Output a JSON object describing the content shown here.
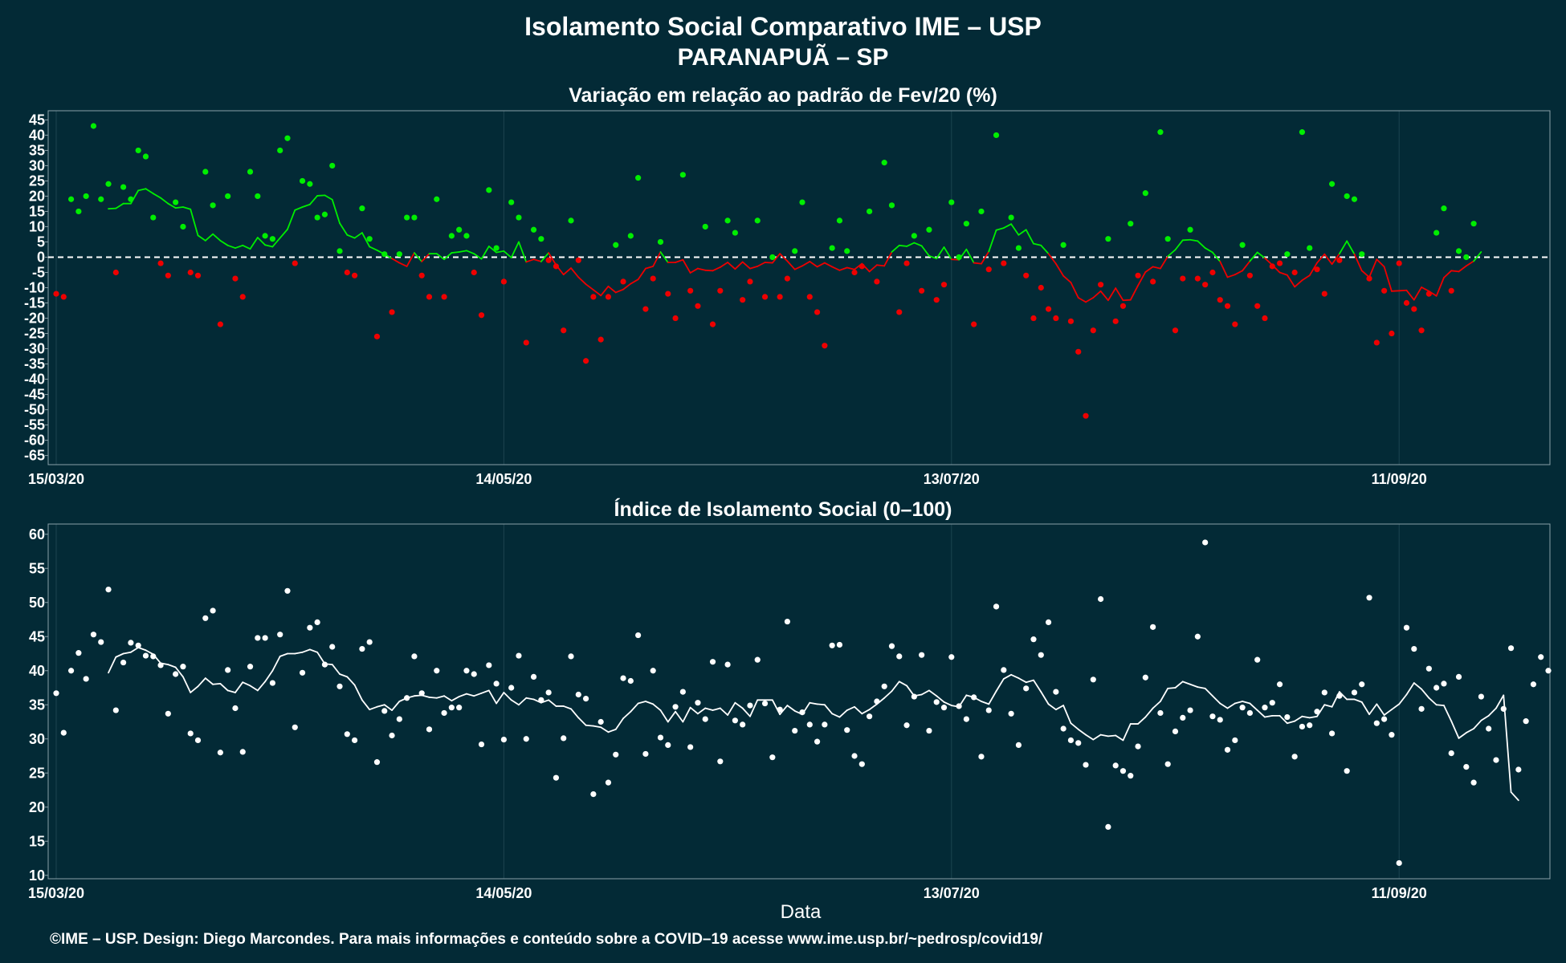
{
  "colors": {
    "background": "#032a36",
    "panel_border": "#8aa0a8",
    "grid": "#1d4450",
    "above_zero": "#00ee00",
    "below_zero": "#ee0000",
    "index": "#ffffff"
  },
  "title": "Isolamento Social Comparativo IME – USP",
  "subtitle": "PARANAPUÃ – SP",
  "footer": "©IME – USP. Design: Diego Marcondes. Para mais informações e conteúdo sobre a COVID–19 acesse www.ime.usp.br/~pedrosp/covid19/",
  "xlabel": "Data",
  "chart_data": [
    {
      "type": "scatter",
      "title": "Variação em relação ao padrão de Fev/20 (%)",
      "x_start": "15/03/20",
      "x_tick_labels": [
        "15/03/20",
        "14/05/20",
        "13/07/20",
        "11/09/20"
      ],
      "x_tick_days": [
        0,
        60,
        120,
        180
      ],
      "ylim": [
        -68,
        48
      ],
      "y_ticks": [
        45,
        40,
        35,
        30,
        25,
        20,
        15,
        10,
        5,
        0,
        -5,
        -10,
        -15,
        -20,
        -25,
        -30,
        -35,
        -40,
        -45,
        -50,
        -55,
        -60,
        -65
      ],
      "reference_line": 0,
      "series": [
        {
          "kind": "daily_points",
          "values": [
            -12,
            -13,
            19,
            15,
            20,
            43,
            19,
            24,
            -5,
            23,
            19,
            35,
            33,
            13,
            -2,
            -6,
            18,
            10,
            -5,
            -6,
            28,
            17,
            -22,
            20,
            -7,
            -13,
            28,
            20,
            7,
            6,
            35,
            39,
            -2,
            25,
            24,
            13,
            14,
            30,
            2,
            -5,
            -6,
            16,
            6,
            -26,
            1,
            -18,
            1,
            13,
            13,
            -6,
            -13,
            19,
            -13,
            7,
            9,
            7,
            -5,
            -19,
            22,
            3,
            -8,
            18,
            13,
            -28,
            9,
            6,
            -1,
            -3,
            -24,
            12,
            -1,
            -34,
            -13,
            -27,
            -13,
            4,
            -8,
            7,
            26,
            -17,
            -7,
            5,
            -12,
            -20,
            27,
            -11,
            -16,
            10,
            -22,
            -11,
            12,
            8,
            -14,
            -8,
            12,
            -13,
            0,
            -13,
            -7,
            2,
            18,
            -13,
            -18,
            -29,
            3,
            12,
            2,
            -5,
            -3,
            15,
            -8,
            31,
            17,
            -18,
            -2,
            7,
            -11,
            9,
            -14,
            -9,
            18,
            0,
            11,
            -22,
            15,
            -4,
            40,
            -2,
            13,
            3,
            -6,
            -20,
            -10,
            -17,
            -20,
            4,
            -21,
            -31,
            -52,
            -24,
            -9,
            6,
            -21,
            -16,
            11,
            -6,
            21,
            -8,
            41,
            6,
            -24,
            -7,
            9,
            -7,
            -9,
            -5,
            -14,
            -16,
            -22,
            4,
            -6,
            -16,
            -20,
            -3,
            -2,
            1,
            -5,
            41,
            3,
            -4,
            -12,
            24,
            -1,
            20,
            19,
            1,
            -7,
            -28,
            -11,
            -25,
            -2,
            -15,
            -17,
            -24,
            -12,
            8,
            16,
            -11,
            2,
            0,
            11
          ]
        },
        {
          "kind": "moving_average",
          "values": [
            null,
            null,
            null,
            null,
            null,
            null,
            null,
            15.86,
            16.0,
            17.57,
            17.57,
            21.86,
            22.43,
            20.86,
            19.43,
            17.57,
            16.14,
            16.43,
            15.71,
            7.14,
            5.43,
            7.57,
            5.43,
            3.86,
            3.0,
            3.86,
            2.71,
            6.43,
            4.0,
            3.43,
            6.29,
            9.14,
            15.43,
            16.43,
            17.29,
            20.14,
            20.29,
            18.86,
            11.14,
            7.29,
            6.29,
            8.0,
            3.43,
            2.29,
            1.0,
            -0.43,
            -1.86,
            -3.0,
            1.43,
            -1.43,
            1.14,
            1.14,
            -0.71,
            1.43,
            1.71,
            2.14,
            1.14,
            -0.57,
            3.57,
            1.57,
            2.0,
            -0.14,
            5.0,
            -1.57,
            -0.71,
            -1.43,
            1.43,
            -2.57,
            -5.71,
            -3.57,
            -6.57,
            -8.86,
            -10.71,
            -12.57,
            -9.57,
            -11.57,
            -10.57,
            -8.71,
            -7.29,
            -3.71,
            -3.0,
            1.71,
            -1.71,
            -1.71,
            -0.86,
            -5.14,
            -3.71,
            -4.29,
            -4.43,
            -3.29,
            -1.71,
            -3.86,
            -1.57,
            -3.71,
            -3.0,
            -1.71,
            -1.86,
            1.14,
            -1.29,
            -4.0,
            -2.86,
            -1.43,
            -3.14,
            -1.86,
            -3.14,
            -4.29,
            -3.43,
            -4.0,
            -2.14,
            -4.71,
            -2.57,
            -2.86,
            1.71,
            3.86,
            3.57,
            4.71,
            3.71,
            0.43,
            -0.43,
            3.29,
            -0.71,
            -0.86,
            2.57,
            -1.86,
            -2.14,
            1.86,
            8.86,
            9.57,
            10.86,
            7.29,
            9.0,
            4.43,
            3.86,
            1.14,
            -2.14,
            -6.14,
            -8.29,
            -13.29,
            -14.71,
            -13.29,
            -11.14,
            -14.14,
            -10.14,
            -14.14,
            -14.0,
            -9.29,
            -4.86,
            -3.14,
            -3.71,
            0.29,
            2.43,
            5.57,
            5.71,
            5.29,
            3.0,
            1.57,
            -1.43,
            -6.57,
            -5.71,
            -4.43,
            -1.29,
            1.57,
            -0.29,
            -2.57,
            -5.0,
            -5.86,
            -9.71,
            -7.57,
            -6.0,
            -1.86,
            1.0,
            -2.29,
            1.14,
            5.29,
            1.0,
            -4.43,
            -6.57,
            -0.71,
            -3.14,
            -11.14,
            -11.0,
            -10.86,
            -14.0,
            -9.86,
            -11.14,
            -12.71,
            -6.71,
            -4.43,
            -4.71,
            -2.86,
            -1.29,
            1.71
          ]
        }
      ]
    },
    {
      "type": "scatter",
      "title": "Índice de Isolamento Social (0–100)",
      "x_start": "15/03/20",
      "x_tick_labels": [
        "15/03/20",
        "14/05/20",
        "13/07/20",
        "11/09/20"
      ],
      "x_tick_days": [
        0,
        60,
        120,
        180
      ],
      "ylim": [
        9.5,
        61.5
      ],
      "y_ticks": [
        60,
        55,
        50,
        45,
        40,
        35,
        30,
        25,
        20,
        15,
        10
      ],
      "series": [
        {
          "kind": "daily_points",
          "values": [
            36.7,
            30.9,
            40,
            42.6,
            38.8,
            45.3,
            44.2,
            51.9,
            34.2,
            41.2,
            44.1,
            43.7,
            42.2,
            42.1,
            40.8,
            33.7,
            39.5,
            40.6,
            30.8,
            29.8,
            47.7,
            48.8,
            28,
            40.1,
            34.5,
            28.1,
            40.6,
            44.8,
            44.8,
            38.2,
            45.3,
            51.7,
            31.7,
            39.7,
            46.3,
            47.1,
            40.9,
            43.5,
            37.7,
            30.7,
            29.8,
            43.2,
            44.2,
            26.6,
            34.1,
            30.5,
            32.9,
            36,
            42.1,
            36.7,
            31.4,
            40,
            33.8,
            34.6,
            34.6,
            40,
            39.5,
            29.2,
            40.8,
            38.1,
            29.9,
            37.5,
            42.2,
            30,
            39.1,
            35.7,
            36.8,
            24.3,
            30.1,
            42.1,
            36.5,
            35.9,
            21.9,
            32.5,
            23.6,
            27.7,
            38.9,
            38.5,
            45.2,
            27.8,
            40,
            30.2,
            29.1,
            34.7,
            36.9,
            28.8,
            35.3,
            32.9,
            41.3,
            26.7,
            40.9,
            32.7,
            32.1,
            34.9,
            41.6,
            35.2,
            27.3,
            34.3,
            47.2,
            31.2,
            33.9,
            32.1,
            29.6,
            32.1,
            43.7,
            43.8,
            31.3,
            27.5,
            26.3,
            33.3,
            35.5,
            37.7,
            43.6,
            42.1,
            32,
            36.2,
            42.3,
            31.2,
            35.4,
            34.6,
            42,
            34.8,
            32.9,
            36.1,
            27.4,
            34.2,
            49.4,
            40.1,
            33.7,
            29.1,
            37.4,
            44.6,
            42.3,
            47.1,
            36.9,
            31.5,
            29.8,
            29.4,
            26.2,
            38.7,
            50.5,
            17.1,
            26.1,
            25.3,
            24.6,
            28.9,
            39,
            46.4,
            33.8,
            26.3,
            31.1,
            33.1,
            34.2,
            45,
            58.8,
            33.3,
            32.8,
            28.4,
            29.8,
            34.6,
            33.8,
            41.6,
            34.6,
            35.3,
            38,
            33.2,
            27.4,
            31.8,
            32,
            34,
            36.8,
            30.8,
            36.3,
            25.3,
            36.8,
            38,
            50.7,
            32.3,
            32.9,
            30.6,
            11.8,
            46.3,
            43.2,
            34.4,
            40.3,
            37.5,
            38.1,
            27.9,
            39.1,
            25.9,
            23.6,
            36.2,
            31.5,
            26.9,
            34.4,
            43.3,
            25.5,
            32.6,
            38,
            42,
            40
          ]
        },
        {
          "kind": "moving_average",
          "values": [
            null,
            null,
            null,
            null,
            null,
            null,
            null,
            39.7,
            42,
            42.5,
            42.7,
            43.4,
            43,
            42.4,
            41.1,
            40.9,
            40.5,
            39.1,
            36.8,
            37.7,
            38.9,
            38,
            38.1,
            37.1,
            36.8,
            38.3,
            37.8,
            37.1,
            38.4,
            40,
            42.1,
            42.5,
            42.5,
            42.7,
            43.1,
            42.7,
            41,
            40.9,
            39.5,
            39.1,
            37.9,
            35.7,
            34.3,
            34.7,
            35,
            34.2,
            35.5,
            36,
            36.3,
            36.4,
            36.1,
            36,
            36.3,
            35.6,
            36.2,
            36.6,
            36.3,
            36.7,
            37.1,
            35.2,
            36.8,
            35.7,
            35,
            36,
            35.8,
            35.3,
            35.7,
            34.8,
            34.8,
            34.4,
            33.1,
            32,
            31.9,
            31.7,
            31,
            31.4,
            33,
            34,
            35.2,
            35.5,
            35.1,
            34.2,
            32.5,
            34,
            32.5,
            34.6,
            33.7,
            34.5,
            34.2,
            34.5,
            33.5,
            35.3,
            34.5,
            33.3,
            35.7,
            35.7,
            35.7,
            33.6,
            34.9,
            34.1,
            33.6,
            35.3,
            35.1,
            35,
            33.7,
            33.2,
            34.2,
            34.7,
            33.7,
            34.3,
            35.1,
            36,
            37,
            38.4,
            37.8,
            36.3,
            36.5,
            37.1,
            36.3,
            35.4,
            34.9,
            34.7,
            36.4,
            36.1,
            35.5,
            35.1,
            37,
            38.8,
            39.4,
            38.9,
            38.3,
            38.6,
            36.9,
            35.1,
            34.3,
            34.9,
            32.3,
            31.4,
            30.6,
            29.9,
            30.6,
            30.4,
            30.5,
            29.8,
            32.2,
            32.2,
            33.2,
            34.5,
            35.5,
            37.4,
            37.5,
            38.4,
            38,
            37.6,
            37.4,
            36.3,
            35.2,
            34.5,
            35.2,
            35.5,
            35.2,
            34.2,
            33.2,
            33.4,
            33.4,
            32.3,
            32.6,
            33.3,
            33.1,
            33.3,
            35,
            34.7,
            36.9,
            35.8,
            35.8,
            35.4,
            33.6,
            35.1,
            33.5,
            34.3,
            35.1,
            36.5,
            38.2,
            37.3,
            36,
            35,
            34.9,
            32.6,
            30.1,
            30.9,
            31.5,
            32.7,
            33.4,
            34.5,
            36.4,
            22.2,
            21
          ]
        }
      ]
    }
  ]
}
